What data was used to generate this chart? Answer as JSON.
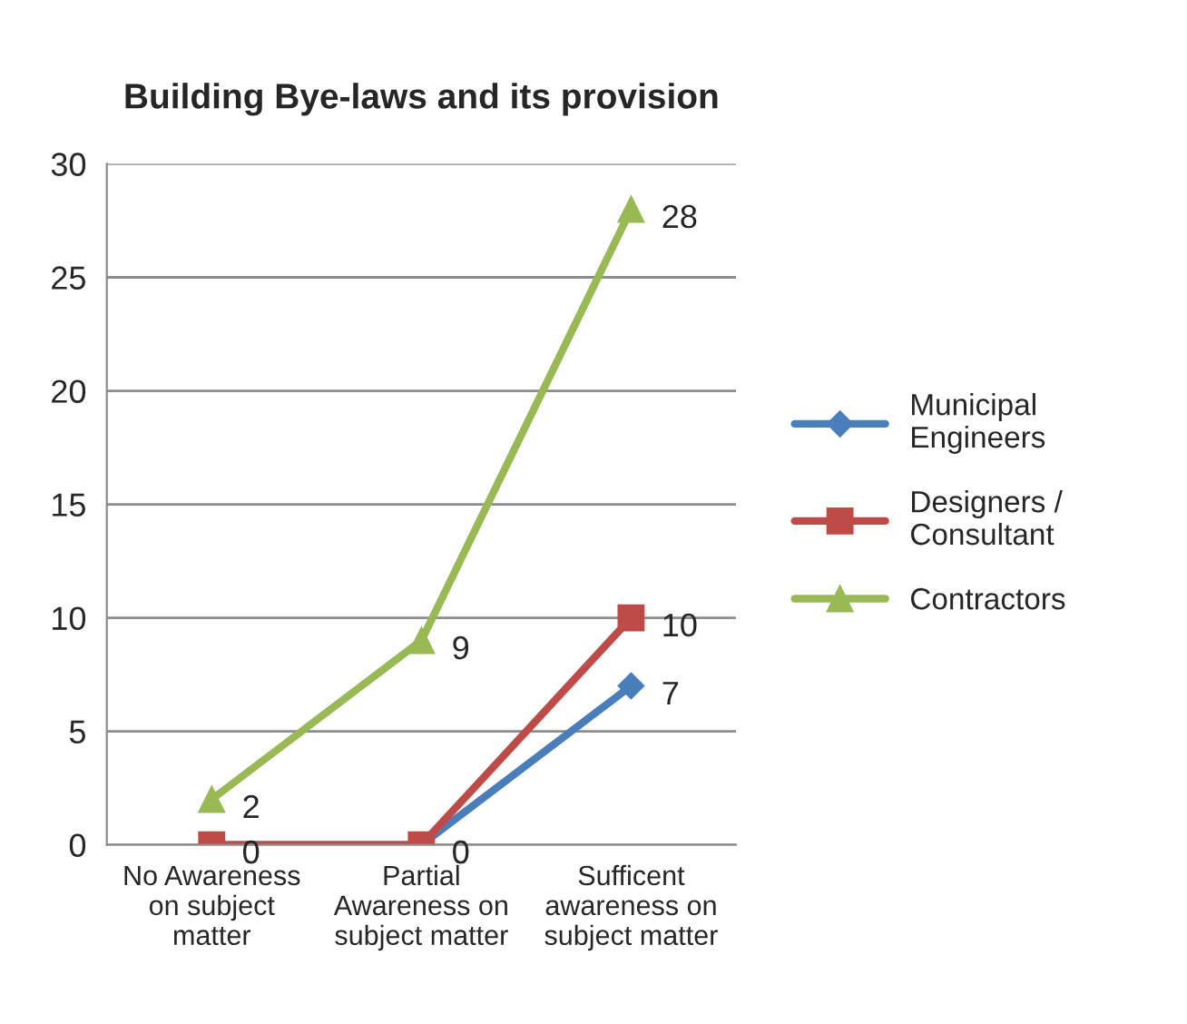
{
  "chart_data": {
    "type": "line",
    "title": "Building Bye-laws and its provision",
    "categories": [
      "No Awareness\non subject\nmatter",
      "Partial\nAwareness on\nsubject matter",
      "Sufficent\nawareness on\nsubject matter"
    ],
    "series": [
      {
        "name": "Municipal\nEngineers",
        "color": "#4a7ebb",
        "marker": "diamond",
        "values": [
          0,
          0,
          7
        ],
        "value_labels": [
          null,
          null,
          "7"
        ]
      },
      {
        "name": "Designers /\nConsultant",
        "color": "#be4b48",
        "marker": "square",
        "values": [
          0,
          0,
          10
        ],
        "value_labels": [
          "0",
          "0",
          "10"
        ]
      },
      {
        "name": "Contractors",
        "color": "#98b954",
        "marker": "triangle",
        "values": [
          2,
          9,
          28
        ],
        "value_labels": [
          "2",
          "9",
          "28"
        ]
      }
    ],
    "ylim": [
      0,
      30
    ],
    "yticks": [
      0,
      5,
      10,
      15,
      20,
      25,
      30
    ],
    "grid": "y",
    "legend": "right"
  }
}
